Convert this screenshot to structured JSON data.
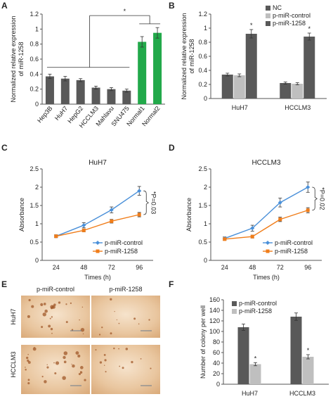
{
  "panel_labels": [
    "A",
    "B",
    "C",
    "D",
    "E",
    "F"
  ],
  "colors": {
    "dark": "#595959",
    "light": "#bfbfbf",
    "green": "#22a94a",
    "blue": "#4a90d9",
    "orange": "#f07d1a",
    "axis": "#555555"
  },
  "chart_data": [
    {
      "panel": "A",
      "type": "bar",
      "categories": [
        "Hep3B",
        "HuH7",
        "HepG2",
        "HCCLM3",
        "Mahlavu",
        "SNU475",
        "Normal1",
        "Normal2"
      ],
      "values": [
        0.37,
        0.34,
        0.32,
        0.22,
        0.2,
        0.18,
        0.83,
        0.95
      ],
      "errors": [
        0.03,
        0.03,
        0.02,
        0.02,
        0.02,
        0.02,
        0.07,
        0.07
      ],
      "bar_colors": [
        "dark",
        "dark",
        "dark",
        "dark",
        "dark",
        "dark",
        "green",
        "green"
      ],
      "ylabel": "Normalized relative expression of miR-1258",
      "ylim": [
        0,
        1.2
      ],
      "yticks": [
        0,
        0.2,
        0.4,
        0.6,
        0.8,
        1,
        1.2
      ],
      "annotation": "*",
      "grid": false
    },
    {
      "panel": "B",
      "type": "bar",
      "categories": [
        "HuH7",
        "HCCLM3"
      ],
      "series": [
        {
          "name": "NC",
          "values": [
            0.34,
            0.22
          ],
          "errors": [
            0.02,
            0.015
          ],
          "color": "dark"
        },
        {
          "name": "p-miR-control",
          "values": [
            0.33,
            0.21
          ],
          "errors": [
            0.02,
            0.015
          ],
          "color": "light"
        },
        {
          "name": "p-miR-1258",
          "values": [
            0.92,
            0.88
          ],
          "errors": [
            0.06,
            0.05
          ],
          "color": "dark"
        }
      ],
      "ylabel": "Normalized relative expression of miR-1258",
      "ylim": [
        0,
        1.2
      ],
      "yticks": [
        0,
        0.2,
        0.4,
        0.6,
        0.8,
        1,
        1.2
      ],
      "annotations": [
        "*",
        "*"
      ],
      "legend": "top-right",
      "grid": false
    },
    {
      "panel": "C",
      "type": "line",
      "title": "HuH7",
      "x": [
        24,
        48,
        72,
        96
      ],
      "series": [
        {
          "name": "p-miR-control",
          "values": [
            0.66,
            0.96,
            1.38,
            1.9
          ],
          "errors": [
            0.04,
            0.07,
            0.08,
            0.12
          ],
          "color": "blue"
        },
        {
          "name": "p-miR-1258",
          "values": [
            0.66,
            0.82,
            1.07,
            1.25
          ],
          "errors": [
            0.03,
            0.04,
            0.05,
            0.06
          ],
          "color": "orange"
        }
      ],
      "xlabel": "Times (h)",
      "ylabel": "Absorbance",
      "ylim": [
        0,
        2.5
      ],
      "yticks": [
        0,
        0.5,
        1,
        1.5,
        2,
        2.5
      ],
      "pvalue": "*P=0.03",
      "legend": "bottom-right",
      "grid": false
    },
    {
      "panel": "D",
      "type": "line",
      "title": "HCCLM3",
      "x": [
        24,
        48,
        72,
        96
      ],
      "series": [
        {
          "name": "p-miR-control",
          "values": [
            0.6,
            0.88,
            1.58,
            2.0
          ],
          "errors": [
            0.04,
            0.08,
            0.12,
            0.14
          ],
          "color": "blue"
        },
        {
          "name": "p-miR-1258",
          "values": [
            0.58,
            0.65,
            1.12,
            1.37
          ],
          "errors": [
            0.03,
            0.04,
            0.06,
            0.07
          ],
          "color": "orange"
        }
      ],
      "xlabel": "Times (h)",
      "ylabel": "Absorbance",
      "ylim": [
        0,
        2.5
      ],
      "yticks": [
        0,
        0.5,
        1,
        1.5,
        2,
        2.5
      ],
      "pvalue": "*P=0.02",
      "legend": "bottom-right",
      "grid": false
    },
    {
      "panel": "F",
      "type": "bar",
      "categories": [
        "HuH7",
        "HCCLM3"
      ],
      "series": [
        {
          "name": "p-miR-control",
          "values": [
            108,
            128
          ],
          "errors": [
            6,
            7
          ],
          "color": "dark"
        },
        {
          "name": "p-miR-1258",
          "values": [
            38,
            52
          ],
          "errors": [
            3,
            4
          ],
          "color": "light"
        }
      ],
      "ylabel": "Number of colony per well",
      "ylim": [
        0,
        160
      ],
      "yticks": [
        0,
        20,
        40,
        60,
        80,
        100,
        120,
        140,
        160
      ],
      "annotations": [
        "*",
        "*"
      ],
      "legend": "top-left",
      "grid": false
    }
  ],
  "panelE": {
    "col_labels": [
      "p-miR-control",
      "p-miR-1258"
    ],
    "row_labels": [
      "HuH7",
      "HCCLM3"
    ]
  }
}
